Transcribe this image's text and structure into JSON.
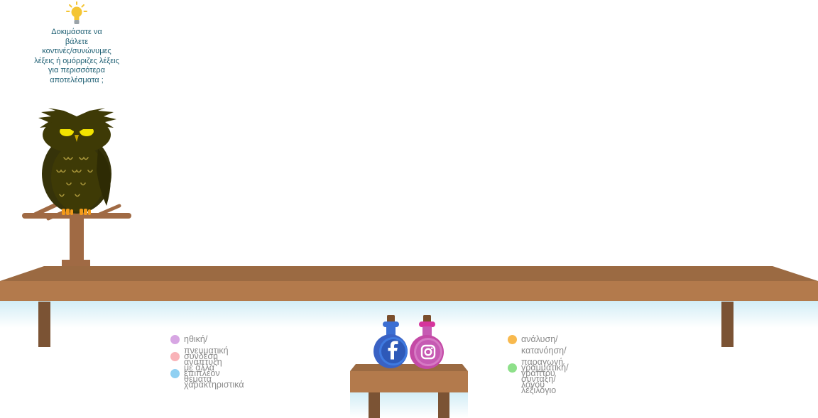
{
  "tip": {
    "icon": "lightbulb-icon",
    "text": "Δοκιμάσατε να\nβάλετε\nκοντινές/συνώνυμες\nλέξεις ή ομόρριζες λέξεις\nγια περισσότερα\nαποτελέσματα ;"
  },
  "legend_left": [
    {
      "label": "ηθική/πνευματική ανάπτυξη",
      "color": "#d7a6e3"
    },
    {
      "label": "σύνδεση με άλλα θέματα",
      "color": "#f9b3b8"
    },
    {
      "label": "επιπλέον χαρακτηριστικά",
      "color": "#8fd0f2"
    }
  ],
  "legend_right": [
    {
      "label": "ανάλυση/κατανόηση/\nπαραγωγή γραπτού λόγου",
      "color": "#f8b94e"
    },
    {
      "label": "γραμματική/σύνταξη/λεξιλόγιο",
      "color": "#8ee08a"
    }
  ],
  "social": {
    "facebook_icon": "facebook-icon",
    "instagram_icon": "instagram-icon",
    "facebook_color": "#3b6fd3",
    "instagram_color": "#c65ab3"
  },
  "colors": {
    "shelf_top": "#9b6a42",
    "shelf_front": "#b37a4c",
    "shelf_leg": "#7b5334",
    "owl_body": "#3e3a06"
  }
}
